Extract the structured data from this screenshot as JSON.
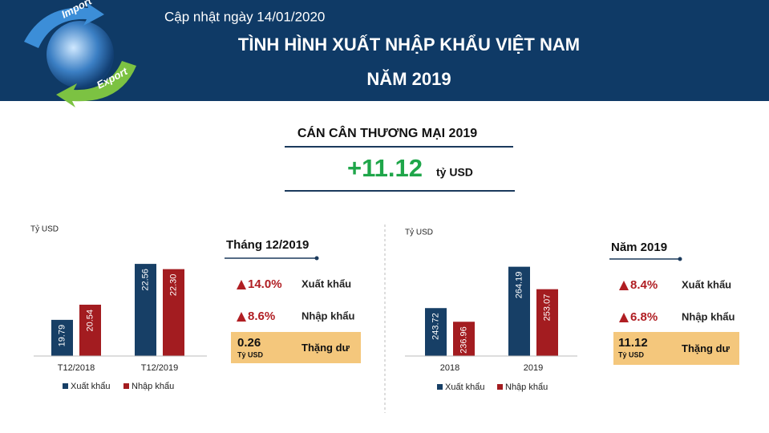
{
  "header": {
    "updated": "Cập nhật ngày 14/01/2020",
    "title_line1": "TÌNH HÌNH XUẤT NHẬP KHẨU VIỆT NAM",
    "title_line2": "NĂM 2019",
    "icon_texts": [
      "Import",
      "Export"
    ]
  },
  "balance": {
    "title": "CÁN CÂN THƯƠNG MẠI 2019",
    "value": "+11.12",
    "unit": "tỷ USD"
  },
  "chart_data": [
    {
      "type": "bar",
      "y_label": "Tỷ USD",
      "categories": [
        "T12/2018",
        "T12/2019"
      ],
      "ylim": [
        18,
        23
      ],
      "series": [
        {
          "name": "Xuất khẩu",
          "color": "#173f66",
          "values": [
            19.79,
            22.56
          ]
        },
        {
          "name": "Nhập khẩu",
          "color": "#a31c20",
          "values": [
            20.54,
            22.3
          ],
          "value_labels": [
            "20.54",
            "22.30"
          ]
        }
      ]
    },
    {
      "type": "bar",
      "y_label": "Tỷ USD",
      "categories": [
        "2018",
        "2019"
      ],
      "ylim": [
        220,
        270
      ],
      "series": [
        {
          "name": "Xuất khẩu",
          "color": "#173f66",
          "values": [
            243.72,
            264.19
          ]
        },
        {
          "name": "Nhập khẩu",
          "color": "#a31c20",
          "values": [
            236.96,
            253.07
          ]
        }
      ]
    }
  ],
  "panels": [
    {
      "title": "Tháng 12/2019",
      "rows": [
        {
          "change": "14.0%",
          "label": "Xuất khẩu"
        },
        {
          "change": "8.6%",
          "label": "Nhập khẩu"
        }
      ],
      "surplus": {
        "value": "0.26",
        "unit": "Tỷ USD",
        "label": "Thặng dư"
      }
    },
    {
      "title": "Năm 2019",
      "rows": [
        {
          "change": "8.4%",
          "label": "Xuất khẩu"
        },
        {
          "change": "6.8%",
          "label": "Nhập khẩu"
        }
      ],
      "surplus": {
        "value": "11.12",
        "unit": "Tỷ USD",
        "label": "Thặng dư"
      }
    }
  ]
}
